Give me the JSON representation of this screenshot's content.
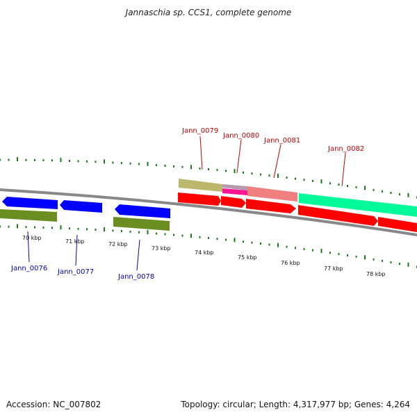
{
  "title": "Jannaschia sp. CCS1, complete genome",
  "footer": {
    "accession": "Accession: NC_007802",
    "genome_info": "Topology: circular; Length: 4,317,977 bp; Genes: 4,264"
  },
  "ruler": {
    "unit_labels": [
      "70 kbp",
      "71 kbp",
      "72 kbp",
      "73 kbp",
      "74 kbp",
      "75 kbp",
      "76 kbp",
      "77 kbp",
      "78 kbp"
    ]
  },
  "colors": {
    "forward_label": "#c00000",
    "reverse_label": "#0000b0",
    "backbone": "#888888",
    "tick": "#1a7a1a",
    "cds_red": "#ff0000",
    "cds_blue": "#0000ff",
    "gene_olive": "#6b8e23",
    "gene_khaki": "#bdb76b",
    "rna_pink": "#f08080",
    "misc_magenta": "#ff1493",
    "misc_teal": "#00fa9a"
  },
  "genes": {
    "forward": [
      {
        "name": "Jann_0079"
      },
      {
        "name": "Jann_0080"
      },
      {
        "name": "Jann_0081"
      },
      {
        "name": "Jann_0082"
      }
    ],
    "reverse": [
      {
        "name": "Jann_0076"
      },
      {
        "name": "Jann_0077"
      },
      {
        "name": "Jann_0078"
      }
    ]
  }
}
